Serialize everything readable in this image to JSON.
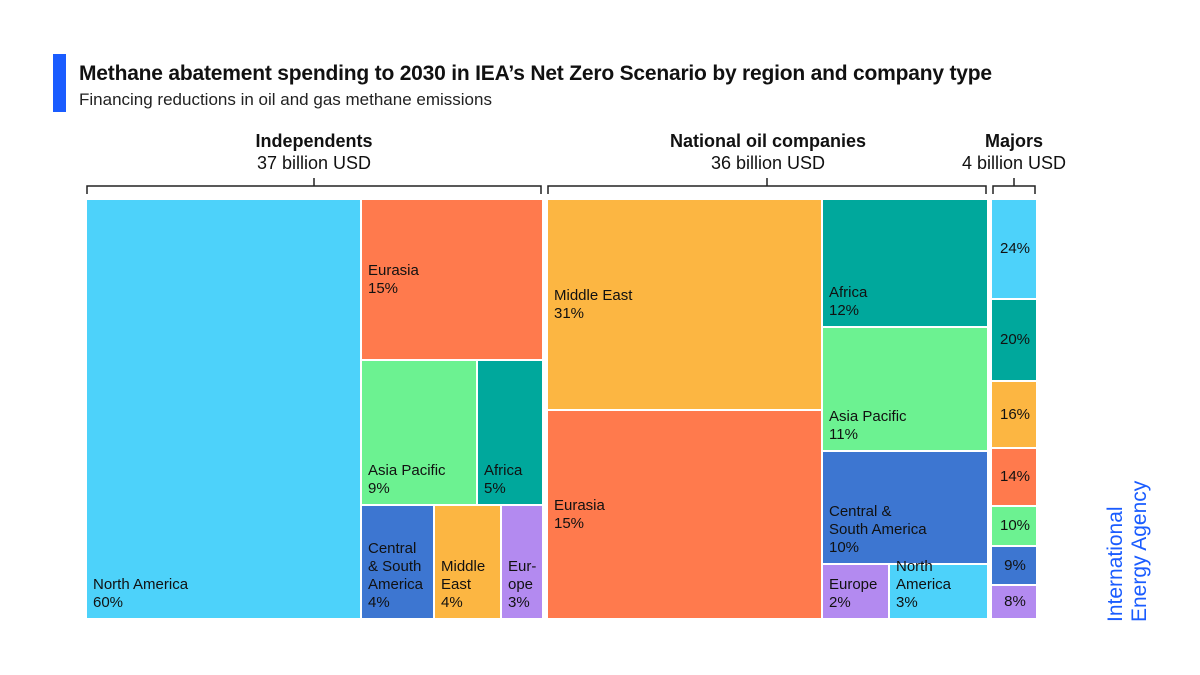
{
  "title": "Methane abatement spending to 2030 in IEA’s Net Zero Scenario by region and company type",
  "subtitle": "Financing reductions in oil and gas methane emissions",
  "logo_text": [
    "International",
    "Energy Agency"
  ],
  "colors": {
    "accent": "#1a5cff",
    "North America": "#4dd2fa",
    "Eurasia": "#ff7a4d",
    "Asia Pacific": "#6cf291",
    "Africa": "#00a89c",
    "Central & South America": "#3d76d1",
    "Middle East": "#fcb642",
    "Europe": "#b38af0"
  },
  "chart_data": {
    "type": "treemap",
    "unit": "billion USD",
    "groups": [
      {
        "name": "Independents",
        "total_label": "37 billion USD",
        "total": 37,
        "cells": [
          {
            "region": "North America",
            "label": [
              "North America"
            ],
            "pct": 60
          },
          {
            "region": "Eurasia",
            "label": [
              "Eurasia"
            ],
            "pct": 15
          },
          {
            "region": "Asia Pacific",
            "label": [
              "Asia Pacific"
            ],
            "pct": 9
          },
          {
            "region": "Africa",
            "label": [
              "Africa"
            ],
            "pct": 5
          },
          {
            "region": "Central & South America",
            "label": [
              "Central",
              "& South",
              "America"
            ],
            "pct": 4
          },
          {
            "region": "Middle East",
            "label": [
              "Middle",
              "East"
            ],
            "pct": 4
          },
          {
            "region": "Europe",
            "label": [
              "Eur-",
              "ope"
            ],
            "pct": 3
          }
        ]
      },
      {
        "name": "National oil companies",
        "total_label": "36 billion USD",
        "total": 36,
        "cells": [
          {
            "region": "Middle East",
            "label": [
              "Middle East"
            ],
            "pct": 31
          },
          {
            "region": "Eurasia",
            "label": [
              "Eurasia"
            ],
            "pct": 15
          },
          {
            "region": "Africa",
            "label": [
              "Africa"
            ],
            "pct": 12
          },
          {
            "region": "Asia Pacific",
            "label": [
              "Asia Pacific"
            ],
            "pct": 11
          },
          {
            "region": "Central & South America",
            "label": [
              "Central &",
              "South America"
            ],
            "pct": 10
          },
          {
            "region": "Europe",
            "label": [
              "Europe"
            ],
            "pct": 2
          },
          {
            "region": "North America",
            "label": [
              "North",
              "America"
            ],
            "pct": 3
          }
        ]
      },
      {
        "name": "Majors",
        "total_label": "4 billion USD",
        "total": 4,
        "cells": [
          {
            "region": "North America",
            "label": [],
            "pct": 24
          },
          {
            "region": "Africa",
            "label": [],
            "pct": 20
          },
          {
            "region": "Middle East",
            "label": [],
            "pct": 16
          },
          {
            "region": "Eurasia",
            "label": [],
            "pct": 14
          },
          {
            "region": "Asia Pacific",
            "label": [],
            "pct": 10
          },
          {
            "region": "Central & South America",
            "label": [],
            "pct": 9
          },
          {
            "region": "Europe",
            "label": [],
            "pct": 8
          }
        ]
      }
    ]
  }
}
